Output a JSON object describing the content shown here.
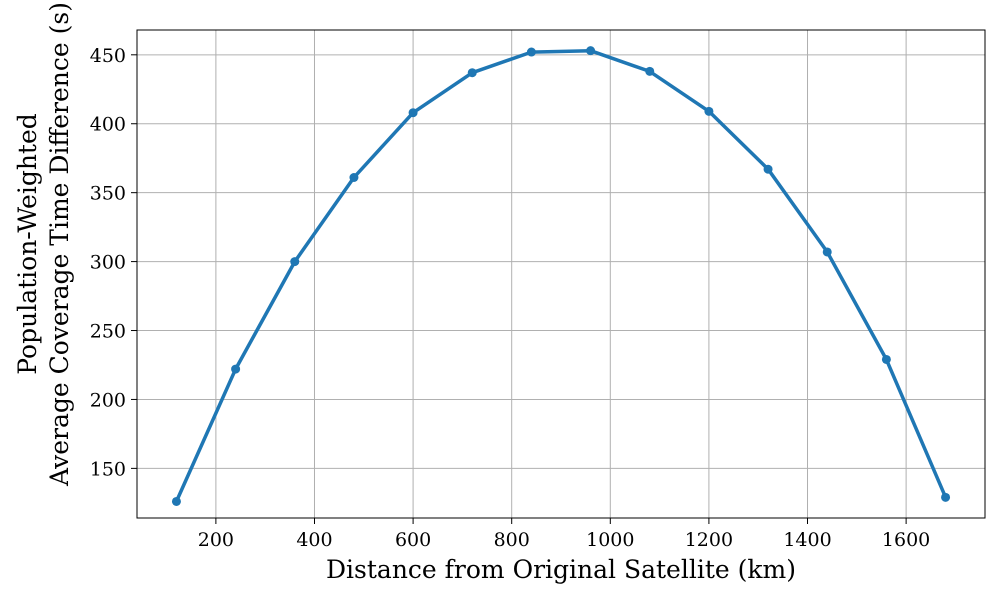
{
  "chart_data": {
    "type": "line",
    "title": "",
    "xlabel": "Distance from Original Satellite (km)",
    "ylabel_lines": [
      "Population-Weighted",
      "Average Coverage Time Difference (s)"
    ],
    "x": [
      120,
      240,
      360,
      480,
      600,
      720,
      840,
      960,
      1080,
      1200,
      1320,
      1440,
      1560,
      1680
    ],
    "series": [
      {
        "values": [
          126,
          222,
          300,
          361,
          408,
          437,
          452,
          453,
          438,
          409,
          367,
          307,
          229,
          129
        ],
        "color": "#1f77b4",
        "marker": "circle"
      }
    ],
    "xlim": [
      40,
      1760
    ],
    "ylim": [
      114,
      468
    ],
    "xticks": [
      200,
      400,
      600,
      800,
      1000,
      1200,
      1400,
      1600
    ],
    "yticks": [
      150,
      200,
      250,
      300,
      350,
      400,
      450
    ],
    "grid": true,
    "legend": "none"
  }
}
